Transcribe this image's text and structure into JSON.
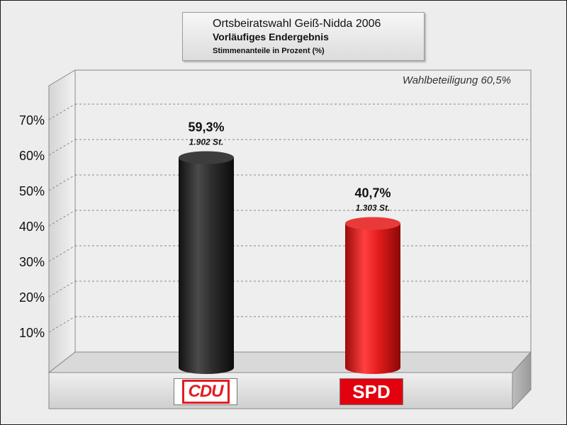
{
  "header": {
    "title": "Ortsbeiratswahl Geiß-Nidda 2006",
    "subtitle": "Vorläufiges Endergebnis",
    "note": "Stimmenanteile in Prozent (%)"
  },
  "annotation": "Wahlbeteiligung 60,5%",
  "colors": {
    "cdu": "#2a2a2a",
    "spd": "#e01f1f",
    "background": "#ededed"
  },
  "chart_data": {
    "type": "bar",
    "title": "Ortsbeiratswahl Geiß-Nidda 2006",
    "categories": [
      "CDU",
      "SPD"
    ],
    "values": [
      59.3,
      40.7
    ],
    "value_labels": [
      "59,3%",
      "40,7%"
    ],
    "vote_labels": [
      "1.902 St.",
      "1.303 St."
    ],
    "votes": [
      1902,
      1303
    ],
    "ylim": [
      0,
      70
    ],
    "yticks": [
      10,
      20,
      30,
      40,
      50,
      60,
      70
    ],
    "ytick_labels": [
      "10%",
      "20%",
      "30%",
      "40%",
      "50%",
      "60%",
      "70%"
    ],
    "grid": true,
    "xlabel": "",
    "ylabel": ""
  },
  "logos": {
    "cdu": "CDU",
    "spd": "SPD"
  }
}
